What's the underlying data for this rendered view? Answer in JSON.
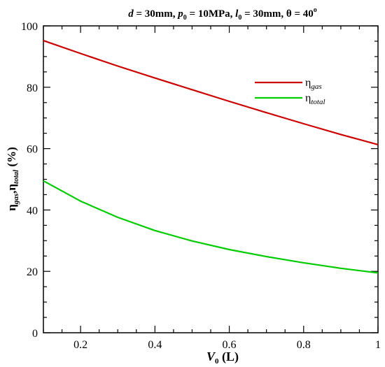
{
  "chart_data": {
    "type": "line",
    "title_parts": {
      "d_symbol": "d",
      "d_value": " = 30mm, ",
      "p_symbol": "p",
      "p_sub": "0",
      "p_value": " = 10MPa, ",
      "l_symbol": "l",
      "l_sub": "0",
      "l_value": " = 30mm, θ = 40",
      "theta_sup": "o"
    },
    "xlabel_parts": {
      "symbol": "V",
      "sub": "0",
      "unit": " (L)"
    },
    "ylabel_parts": {
      "eta1": "η",
      "sub1": "gas",
      "sep": ",η",
      "sub2": "total",
      "unit": " (%)"
    },
    "xlim": [
      0.1,
      1.0
    ],
    "ylim": [
      0,
      100
    ],
    "xticks": [
      0.2,
      0.4,
      0.6,
      0.8,
      1.0
    ],
    "xtick_labels": [
      "0.2",
      "0.4",
      "0.6",
      "0.8",
      "1"
    ],
    "yticks": [
      0,
      20,
      40,
      60,
      80,
      100
    ],
    "ytick_labels": [
      "0",
      "20",
      "40",
      "60",
      "80",
      "100"
    ],
    "grid": false,
    "legend_placement": "top-right",
    "series": [
      {
        "key": "gas",
        "legend_symbol": "η",
        "legend_sub": "gas",
        "color": "#cc0000",
        "x": [
          0.1,
          0.2,
          0.3,
          0.4,
          0.5,
          0.6,
          0.7,
          0.8,
          0.9,
          1.0
        ],
        "y": [
          95.2,
          91.0,
          86.9,
          83.0,
          79.2,
          75.4,
          71.7,
          68.1,
          64.6,
          61.3
        ]
      },
      {
        "key": "total",
        "legend_symbol": "η",
        "legend_sub": "total",
        "color": "#00cc00",
        "x": [
          0.1,
          0.2,
          0.3,
          0.4,
          0.5,
          0.6,
          0.7,
          0.8,
          0.9,
          1.0
        ],
        "y": [
          49.5,
          42.9,
          37.6,
          33.3,
          29.9,
          27.1,
          24.8,
          22.8,
          21.0,
          19.5
        ]
      }
    ]
  }
}
